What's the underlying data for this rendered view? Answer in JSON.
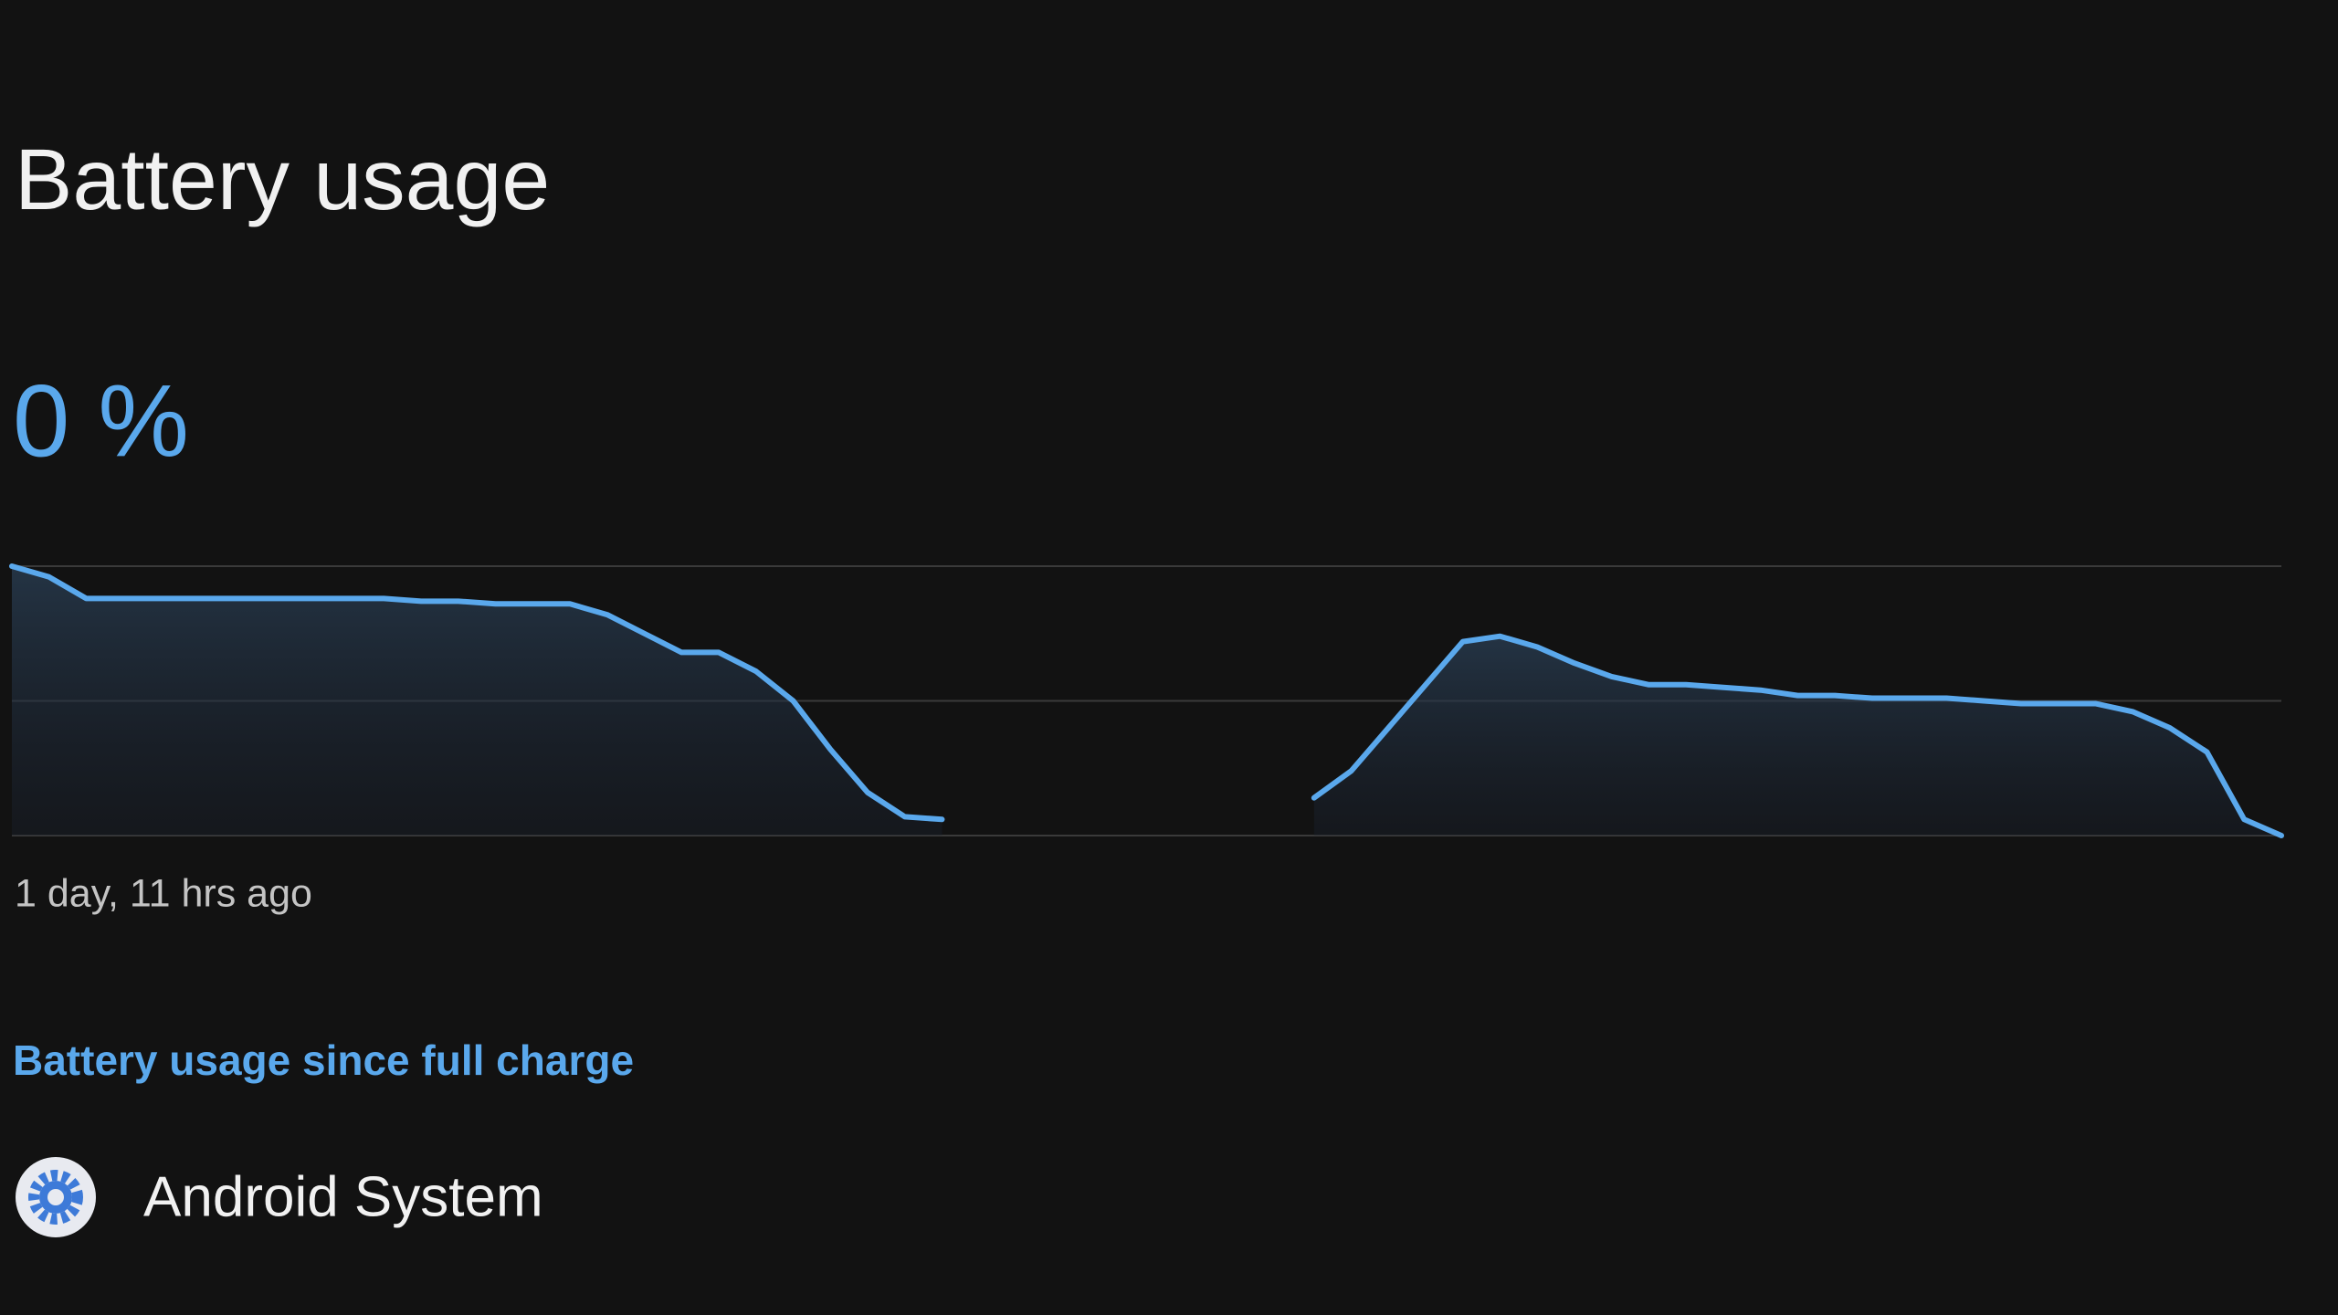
{
  "header": {
    "title": "Battery usage"
  },
  "battery_level": "0 %",
  "chart_data": {
    "type": "line",
    "color": "#5aa8ec",
    "values": [
      100,
      96,
      88,
      88,
      88,
      88,
      88,
      88,
      88,
      88,
      88,
      87,
      87,
      86,
      86,
      86,
      82,
      75,
      68,
      68,
      61,
      50,
      32,
      16,
      7,
      6,
      null,
      null,
      null,
      null,
      null,
      null,
      null,
      null,
      null,
      14,
      24,
      40,
      56,
      72,
      74,
      70,
      64,
      59,
      56,
      56,
      55,
      54,
      52,
      52,
      51,
      51,
      51,
      50,
      49,
      49,
      49,
      46,
      40,
      31,
      6,
      0
    ],
    "ylim": [
      0,
      100
    ],
    "yticks": [
      0,
      50,
      100
    ],
    "grid": true,
    "x_start_label": "1 day, 11 hrs ago"
  },
  "section": {
    "title": "Battery usage since full charge",
    "items": [
      {
        "label": "Android System"
      }
    ]
  }
}
